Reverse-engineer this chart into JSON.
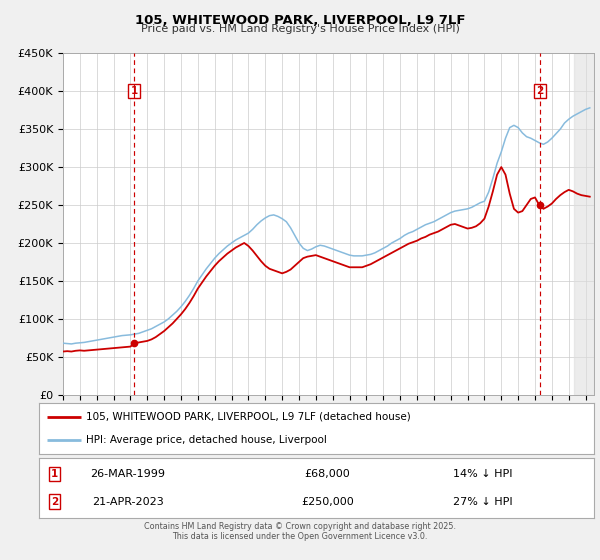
{
  "title": "105, WHITEWOOD PARK, LIVERPOOL, L9 7LF",
  "subtitle": "Price paid vs. HM Land Registry's House Price Index (HPI)",
  "legend_line1": "105, WHITEWOOD PARK, LIVERPOOL, L9 7LF (detached house)",
  "legend_line2": "HPI: Average price, detached house, Liverpool",
  "transaction1_label": "1",
  "transaction1_date": "26-MAR-1999",
  "transaction1_price": "£68,000",
  "transaction1_hpi": "14% ↓ HPI",
  "transaction2_label": "2",
  "transaction2_date": "21-APR-2023",
  "transaction2_price": "£250,000",
  "transaction2_hpi": "27% ↓ HPI",
  "footer": "Contains HM Land Registry data © Crown copyright and database right 2025.\nThis data is licensed under the Open Government Licence v3.0.",
  "xmin": 1995.0,
  "xmax": 2026.5,
  "ymin": 0,
  "ymax": 450000,
  "yticks": [
    0,
    50000,
    100000,
    150000,
    200000,
    250000,
    300000,
    350000,
    400000,
    450000
  ],
  "background_color": "#f0f0f0",
  "plot_background": "#ffffff",
  "grid_color": "#cccccc",
  "hpi_color": "#88bbdd",
  "price_color": "#cc0000",
  "vline_color": "#cc0000",
  "shade_start": 2025.3,
  "marker1_x": 1999.23,
  "marker1_y": 68000,
  "marker2_x": 2023.3,
  "marker2_y": 250000,
  "hpi_data_x": [
    1995.0,
    1995.25,
    1995.5,
    1995.75,
    1996.0,
    1996.25,
    1996.5,
    1996.75,
    1997.0,
    1997.25,
    1997.5,
    1997.75,
    1998.0,
    1998.25,
    1998.5,
    1998.75,
    1999.0,
    1999.25,
    1999.5,
    1999.75,
    2000.0,
    2000.25,
    2000.5,
    2000.75,
    2001.0,
    2001.25,
    2001.5,
    2001.75,
    2002.0,
    2002.25,
    2002.5,
    2002.75,
    2003.0,
    2003.25,
    2003.5,
    2003.75,
    2004.0,
    2004.25,
    2004.5,
    2004.75,
    2005.0,
    2005.25,
    2005.5,
    2005.75,
    2006.0,
    2006.25,
    2006.5,
    2006.75,
    2007.0,
    2007.25,
    2007.5,
    2007.75,
    2008.0,
    2008.25,
    2008.5,
    2008.75,
    2009.0,
    2009.25,
    2009.5,
    2009.75,
    2010.0,
    2010.25,
    2010.5,
    2010.75,
    2011.0,
    2011.25,
    2011.5,
    2011.75,
    2012.0,
    2012.25,
    2012.5,
    2012.75,
    2013.0,
    2013.25,
    2013.5,
    2013.75,
    2014.0,
    2014.25,
    2014.5,
    2014.75,
    2015.0,
    2015.25,
    2015.5,
    2015.75,
    2016.0,
    2016.25,
    2016.5,
    2016.75,
    2017.0,
    2017.25,
    2017.5,
    2017.75,
    2018.0,
    2018.25,
    2018.5,
    2018.75,
    2019.0,
    2019.25,
    2019.5,
    2019.75,
    2020.0,
    2020.25,
    2020.5,
    2020.75,
    2021.0,
    2021.25,
    2021.5,
    2021.75,
    2022.0,
    2022.25,
    2022.5,
    2022.75,
    2023.0,
    2023.25,
    2023.5,
    2023.75,
    2024.0,
    2024.25,
    2024.5,
    2024.75,
    2025.0,
    2025.25,
    2025.5,
    2025.75,
    2026.0,
    2026.25
  ],
  "hpi_data_y": [
    68000,
    67500,
    67000,
    68000,
    68500,
    69000,
    70000,
    71000,
    72000,
    73000,
    74000,
    75000,
    76000,
    77000,
    78000,
    78500,
    79000,
    80000,
    81000,
    83000,
    85000,
    87000,
    90000,
    93000,
    96000,
    100000,
    105000,
    110000,
    116000,
    123000,
    131000,
    140000,
    150000,
    158000,
    166000,
    173000,
    180000,
    186000,
    191000,
    196000,
    200000,
    204000,
    207000,
    210000,
    213000,
    218000,
    224000,
    229000,
    233000,
    236000,
    237000,
    235000,
    232000,
    228000,
    220000,
    210000,
    200000,
    193000,
    190000,
    192000,
    195000,
    197000,
    196000,
    194000,
    192000,
    190000,
    188000,
    186000,
    184000,
    183000,
    183000,
    183000,
    184000,
    185000,
    187000,
    190000,
    193000,
    196000,
    200000,
    203000,
    206000,
    210000,
    213000,
    215000,
    218000,
    221000,
    224000,
    226000,
    228000,
    231000,
    234000,
    237000,
    240000,
    242000,
    243000,
    244000,
    245000,
    247000,
    250000,
    253000,
    255000,
    267000,
    285000,
    305000,
    320000,
    338000,
    352000,
    355000,
    352000,
    345000,
    340000,
    338000,
    335000,
    332000,
    330000,
    333000,
    338000,
    344000,
    350000,
    358000,
    363000,
    367000,
    370000,
    373000,
    376000,
    378000
  ],
  "price_data_x": [
    1995.0,
    1995.25,
    1995.5,
    1995.75,
    1996.0,
    1996.25,
    1996.5,
    1996.75,
    1997.0,
    1997.25,
    1997.5,
    1997.75,
    1998.0,
    1998.25,
    1998.5,
    1998.75,
    1999.0,
    1999.25,
    1999.5,
    1999.75,
    2000.0,
    2000.25,
    2000.5,
    2000.75,
    2001.0,
    2001.25,
    2001.5,
    2001.75,
    2002.0,
    2002.25,
    2002.5,
    2002.75,
    2003.0,
    2003.25,
    2003.5,
    2003.75,
    2004.0,
    2004.25,
    2004.5,
    2004.75,
    2005.0,
    2005.25,
    2005.5,
    2005.75,
    2006.0,
    2006.25,
    2006.5,
    2006.75,
    2007.0,
    2007.25,
    2007.5,
    2007.75,
    2008.0,
    2008.25,
    2008.5,
    2008.75,
    2009.0,
    2009.25,
    2009.5,
    2009.75,
    2010.0,
    2010.25,
    2010.5,
    2010.75,
    2011.0,
    2011.25,
    2011.5,
    2011.75,
    2012.0,
    2012.25,
    2012.5,
    2012.75,
    2013.0,
    2013.25,
    2013.5,
    2013.75,
    2014.0,
    2014.25,
    2014.5,
    2014.75,
    2015.0,
    2015.25,
    2015.5,
    2015.75,
    2016.0,
    2016.25,
    2016.5,
    2016.75,
    2017.0,
    2017.25,
    2017.5,
    2017.75,
    2018.0,
    2018.25,
    2018.5,
    2018.75,
    2019.0,
    2019.25,
    2019.5,
    2019.75,
    2020.0,
    2020.25,
    2020.5,
    2020.75,
    2021.0,
    2021.25,
    2021.5,
    2021.75,
    2022.0,
    2022.25,
    2022.5,
    2022.75,
    2023.0,
    2023.25,
    2023.5,
    2023.75,
    2024.0,
    2024.25,
    2024.5,
    2024.75,
    2025.0,
    2025.25,
    2025.5,
    2025.75,
    2026.0,
    2026.25
  ],
  "price_data_y": [
    57000,
    57500,
    57000,
    58000,
    58500,
    58000,
    58500,
    59000,
    59500,
    60000,
    60500,
    61000,
    61500,
    62000,
    62500,
    63000,
    63500,
    68000,
    69000,
    70000,
    71000,
    73000,
    76000,
    80000,
    84000,
    89000,
    94000,
    100000,
    106000,
    113000,
    121000,
    130000,
    140000,
    148000,
    156000,
    163000,
    170000,
    176000,
    181000,
    186000,
    190000,
    194000,
    197000,
    200000,
    196000,
    190000,
    183000,
    176000,
    170000,
    166000,
    164000,
    162000,
    160000,
    162000,
    165000,
    170000,
    175000,
    180000,
    182000,
    183000,
    184000,
    182000,
    180000,
    178000,
    176000,
    174000,
    172000,
    170000,
    168000,
    168000,
    168000,
    168000,
    170000,
    172000,
    175000,
    178000,
    181000,
    184000,
    187000,
    190000,
    193000,
    196000,
    199000,
    201000,
    203000,
    206000,
    208000,
    211000,
    213000,
    215000,
    218000,
    221000,
    224000,
    225000,
    223000,
    221000,
    219000,
    220000,
    222000,
    226000,
    232000,
    248000,
    268000,
    290000,
    300000,
    290000,
    265000,
    245000,
    240000,
    242000,
    250000,
    258000,
    260000,
    250000,
    245000,
    248000,
    252000,
    258000,
    263000,
    267000,
    270000,
    268000,
    265000,
    263000,
    262000,
    261000
  ]
}
